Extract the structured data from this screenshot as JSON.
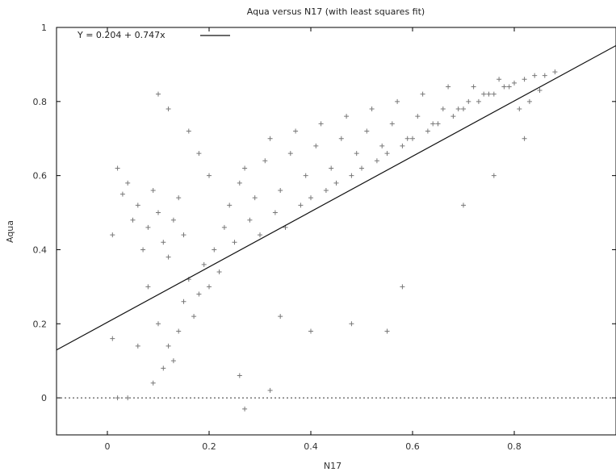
{
  "chart_data": {
    "type": "scatter",
    "title": "Aqua versus N17 (with least squares fit)",
    "xlabel": "N17",
    "ylabel": "Aqua",
    "xlim": [
      -0.1,
      1.0
    ],
    "ylim": [
      -0.1,
      1.0
    ],
    "x_ticks": [
      0,
      0.2,
      0.4,
      0.6,
      0.8
    ],
    "y_ticks": [
      0,
      0.2,
      0.4,
      0.6,
      0.8,
      1
    ],
    "y_tick_labels": [
      "0",
      "0.2",
      "0.4",
      "0.6",
      "0.8",
      "1"
    ],
    "x_tick_labels": [
      "0",
      "0.2",
      "0.4",
      "0.6",
      "0.8"
    ],
    "legend": {
      "position": "top-left",
      "label": "Y = 0.204 + 0.747x"
    },
    "fit": {
      "intercept": 0.204,
      "slope": 0.747
    },
    "reference_line": {
      "y": 0,
      "style": "dotted"
    },
    "grid": false,
    "marker": "plus",
    "series": [
      {
        "points": [
          [
            0.02,
            0.62
          ],
          [
            0.03,
            0.55
          ],
          [
            0.01,
            0.44
          ],
          [
            0.05,
            0.48
          ],
          [
            0.04,
            0.58
          ],
          [
            0.06,
            0.52
          ],
          [
            0.08,
            0.46
          ],
          [
            0.07,
            0.4
          ],
          [
            0.09,
            0.56
          ],
          [
            0.1,
            0.5
          ],
          [
            0.11,
            0.42
          ],
          [
            0.12,
            0.38
          ],
          [
            0.13,
            0.48
          ],
          [
            0.14,
            0.54
          ],
          [
            0.15,
            0.44
          ],
          [
            0.1,
            0.82
          ],
          [
            0.12,
            0.78
          ],
          [
            0.16,
            0.72
          ],
          [
            0.18,
            0.66
          ],
          [
            0.2,
            0.6
          ],
          [
            0.08,
            0.3
          ],
          [
            0.1,
            0.2
          ],
          [
            0.12,
            0.14
          ],
          [
            0.11,
            0.08
          ],
          [
            0.09,
            0.04
          ],
          [
            0.13,
            0.1
          ],
          [
            0.14,
            0.18
          ],
          [
            0.15,
            0.26
          ],
          [
            0.16,
            0.32
          ],
          [
            0.17,
            0.22
          ],
          [
            0.18,
            0.28
          ],
          [
            0.19,
            0.36
          ],
          [
            0.2,
            0.3
          ],
          [
            0.21,
            0.4
          ],
          [
            0.22,
            0.34
          ],
          [
            0.23,
            0.46
          ],
          [
            0.24,
            0.52
          ],
          [
            0.25,
            0.42
          ],
          [
            0.26,
            0.58
          ],
          [
            0.27,
            0.62
          ],
          [
            0.28,
            0.48
          ],
          [
            0.29,
            0.54
          ],
          [
            0.3,
            0.44
          ],
          [
            0.31,
            0.64
          ],
          [
            0.32,
            0.7
          ],
          [
            0.33,
            0.5
          ],
          [
            0.34,
            0.56
          ],
          [
            0.35,
            0.46
          ],
          [
            0.36,
            0.66
          ],
          [
            0.37,
            0.72
          ],
          [
            0.38,
            0.52
          ],
          [
            0.39,
            0.6
          ],
          [
            0.4,
            0.54
          ],
          [
            0.41,
            0.68
          ],
          [
            0.42,
            0.74
          ],
          [
            0.43,
            0.56
          ],
          [
            0.44,
            0.62
          ],
          [
            0.45,
            0.58
          ],
          [
            0.46,
            0.7
          ],
          [
            0.47,
            0.76
          ],
          [
            0.48,
            0.6
          ],
          [
            0.49,
            0.66
          ],
          [
            0.5,
            0.62
          ],
          [
            0.51,
            0.72
          ],
          [
            0.52,
            0.78
          ],
          [
            0.53,
            0.64
          ],
          [
            0.54,
            0.68
          ],
          [
            0.55,
            0.66
          ],
          [
            0.56,
            0.74
          ],
          [
            0.57,
            0.8
          ],
          [
            0.58,
            0.68
          ],
          [
            0.59,
            0.7
          ],
          [
            0.6,
            0.7
          ],
          [
            0.61,
            0.76
          ],
          [
            0.62,
            0.82
          ],
          [
            0.63,
            0.72
          ],
          [
            0.64,
            0.74
          ],
          [
            0.65,
            0.74
          ],
          [
            0.66,
            0.78
          ],
          [
            0.67,
            0.84
          ],
          [
            0.68,
            0.76
          ],
          [
            0.69,
            0.78
          ],
          [
            0.7,
            0.78
          ],
          [
            0.71,
            0.8
          ],
          [
            0.72,
            0.84
          ],
          [
            0.73,
            0.8
          ],
          [
            0.74,
            0.82
          ],
          [
            0.75,
            0.82
          ],
          [
            0.76,
            0.82
          ],
          [
            0.77,
            0.86
          ],
          [
            0.78,
            0.84
          ],
          [
            0.79,
            0.84
          ],
          [
            0.8,
            0.85
          ],
          [
            0.82,
            0.86
          ],
          [
            0.84,
            0.87
          ],
          [
            0.86,
            0.87
          ],
          [
            0.88,
            0.88
          ],
          [
            0.85,
            0.83
          ],
          [
            0.83,
            0.8
          ],
          [
            0.81,
            0.78
          ],
          [
            0.58,
            0.3
          ],
          [
            0.55,
            0.18
          ],
          [
            0.48,
            0.2
          ],
          [
            0.4,
            0.18
          ],
          [
            0.34,
            0.22
          ],
          [
            0.26,
            0.06
          ],
          [
            0.27,
            -0.03
          ],
          [
            0.32,
            0.02
          ],
          [
            0.04,
            0.0
          ],
          [
            0.02,
            0.0
          ],
          [
            0.01,
            0.16
          ],
          [
            0.06,
            0.14
          ],
          [
            0.7,
            0.52
          ],
          [
            0.76,
            0.6
          ],
          [
            0.82,
            0.7
          ]
        ]
      }
    ]
  }
}
